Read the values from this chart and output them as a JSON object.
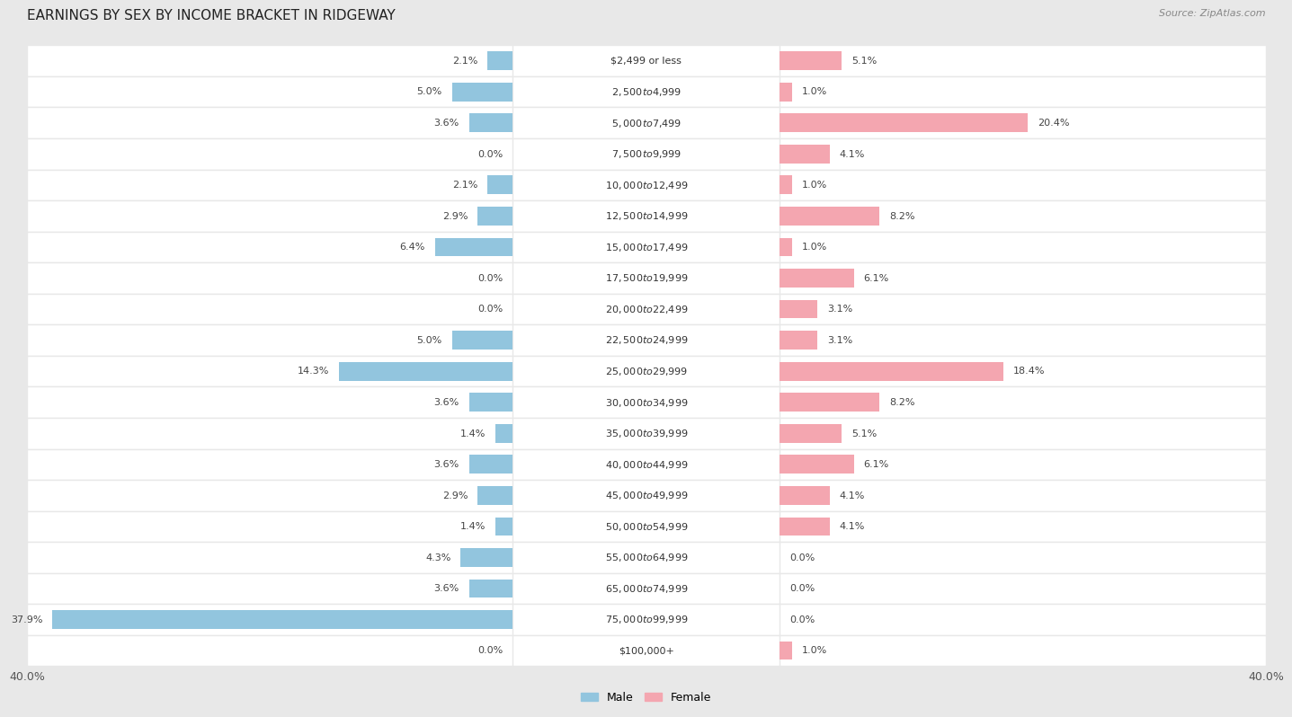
{
  "title": "EARNINGS BY SEX BY INCOME BRACKET IN RIDGEWAY",
  "source": "Source: ZipAtlas.com",
  "categories": [
    "$2,499 or less",
    "$2,500 to $4,999",
    "$5,000 to $7,499",
    "$7,500 to $9,999",
    "$10,000 to $12,499",
    "$12,500 to $14,999",
    "$15,000 to $17,499",
    "$17,500 to $19,999",
    "$20,000 to $22,499",
    "$22,500 to $24,999",
    "$25,000 to $29,999",
    "$30,000 to $34,999",
    "$35,000 to $39,999",
    "$40,000 to $44,999",
    "$45,000 to $49,999",
    "$50,000 to $54,999",
    "$55,000 to $64,999",
    "$65,000 to $74,999",
    "$75,000 to $99,999",
    "$100,000+"
  ],
  "male_values": [
    2.1,
    5.0,
    3.6,
    0.0,
    2.1,
    2.9,
    6.4,
    0.0,
    0.0,
    5.0,
    14.3,
    3.6,
    1.4,
    3.6,
    2.9,
    1.4,
    4.3,
    3.6,
    37.9,
    0.0
  ],
  "female_values": [
    5.1,
    1.0,
    20.4,
    4.1,
    1.0,
    8.2,
    1.0,
    6.1,
    3.1,
    3.1,
    18.4,
    8.2,
    5.1,
    6.1,
    4.1,
    4.1,
    0.0,
    0.0,
    0.0,
    1.0
  ],
  "male_color": "#92c5de",
  "female_color": "#f4a6b0",
  "xlim": 40.0,
  "background_color": "#e8e8e8",
  "row_color": "#ffffff",
  "title_fontsize": 11,
  "source_fontsize": 8,
  "tick_fontsize": 9,
  "label_fontsize": 8,
  "value_fontsize": 8,
  "bar_height": 0.6
}
